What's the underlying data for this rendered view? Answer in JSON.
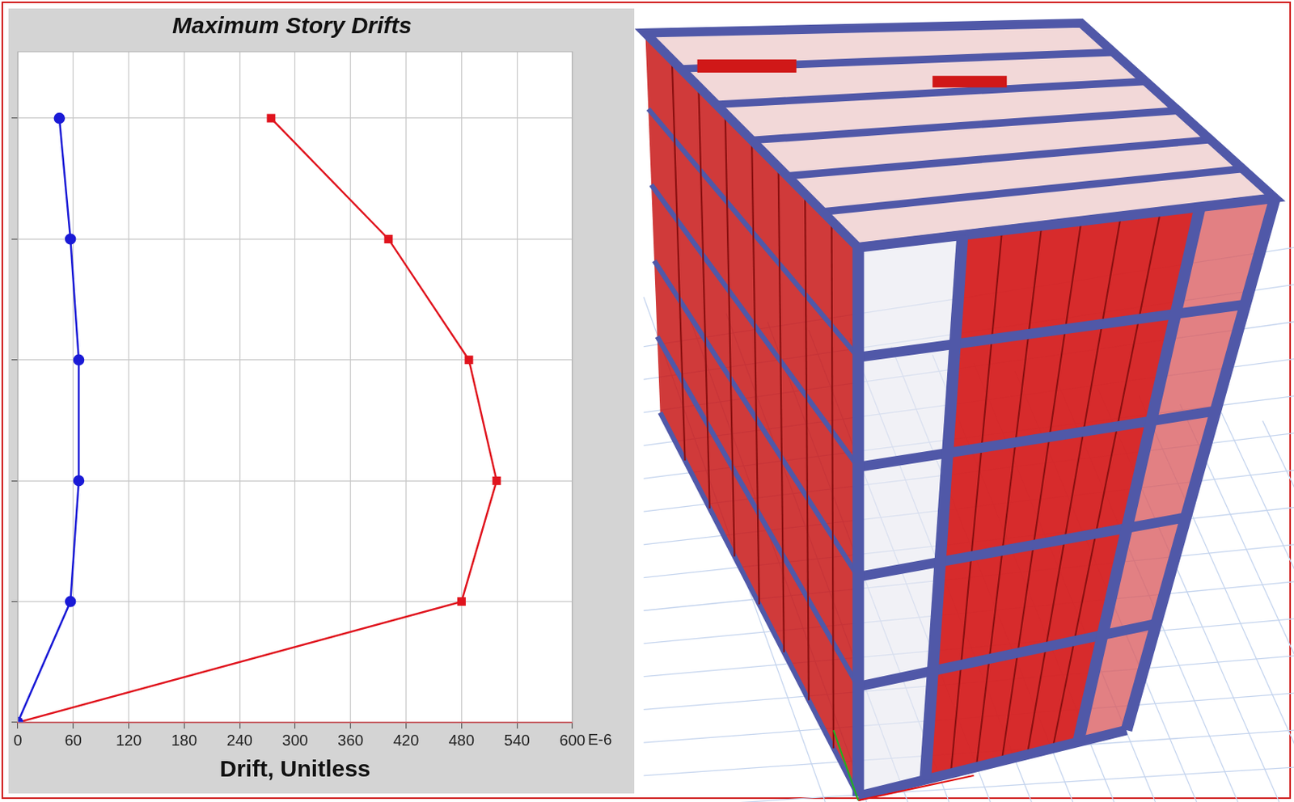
{
  "chart_data": {
    "type": "line",
    "title": "Maximum Story Drifts",
    "x_label": "Drift, Unitless",
    "annotations": [
      "E-6"
    ],
    "orientation": "horizontal",
    "y": [
      0,
      1,
      2,
      3,
      4,
      5
    ],
    "series": [
      {
        "color": "#1a1ad6",
        "marker": "circle",
        "line_style": "solid",
        "values": [
          0,
          57,
          66,
          66,
          57,
          45
        ]
      },
      {
        "color": "#e0141e",
        "marker": "square",
        "line_style": "solid",
        "values": [
          0,
          480,
          518,
          488,
          401,
          274
        ]
      }
    ],
    "xlim": [
      0,
      600
    ],
    "xticks": [
      0,
      60,
      120,
      180,
      240,
      300,
      360,
      420,
      480,
      540,
      600
    ],
    "ylim": [
      0,
      5.55
    ],
    "yticks": [
      0,
      1,
      2,
      3,
      4,
      5
    ],
    "grid": true,
    "tick_labels": "x"
  }
}
